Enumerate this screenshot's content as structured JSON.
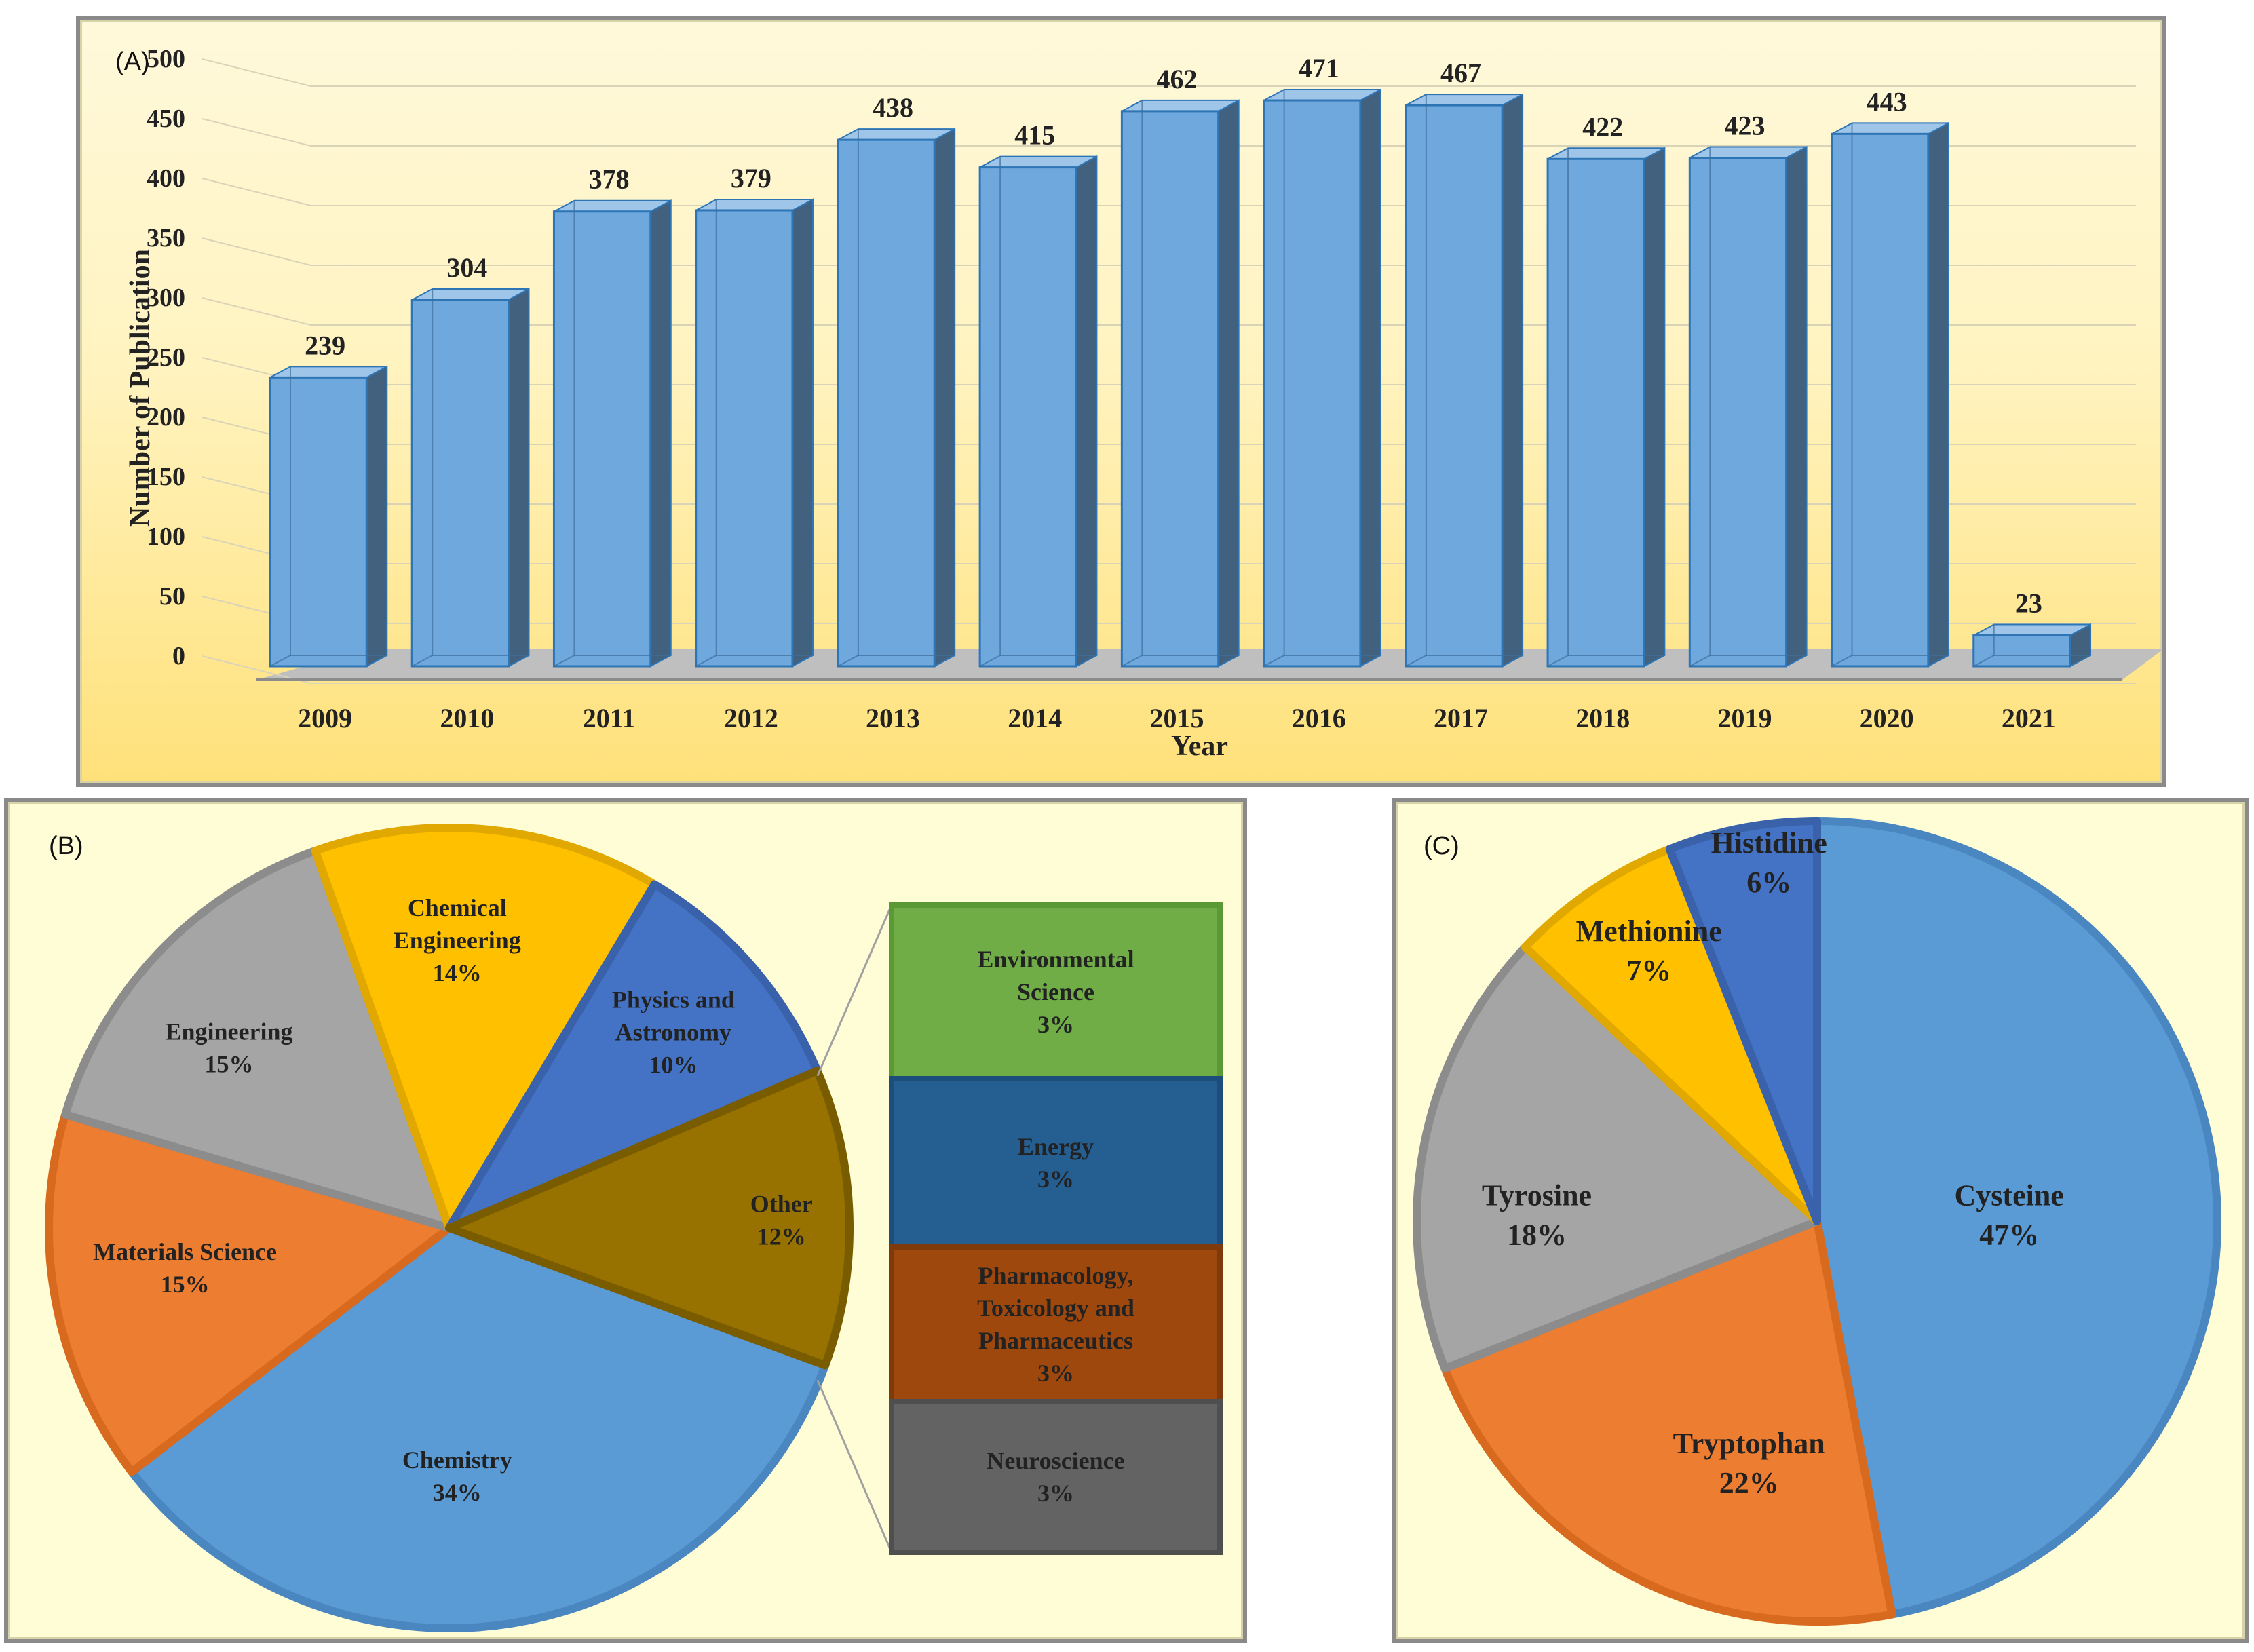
{
  "colors": {
    "bar_front": "#6fa8dc",
    "bar_side": "#41617f",
    "bar_edge": "#2e75b6",
    "pie_blue": "#5b9bd5",
    "pie_orange": "#ed7d31",
    "pie_gray": "#a5a5a5",
    "pie_yellow": "#ffc000",
    "pie_darkblue": "#4472c4",
    "pie_olive": "#977200",
    "green": "#70ad47",
    "teal_blue": "#255e91",
    "brown": "#9e480e",
    "dark_gray": "#636363"
  },
  "chart_data": [
    {
      "panel_label": "(A)",
      "type": "bar",
      "title": "",
      "xlabel": "Year",
      "ylabel": "Number of Publication",
      "ylim": [
        0,
        500
      ],
      "yticks": [
        0,
        50,
        100,
        150,
        200,
        250,
        300,
        350,
        400,
        450,
        500
      ],
      "categories": [
        "2009",
        "2010",
        "2011",
        "2012",
        "2013",
        "2014",
        "2015",
        "2016",
        "2017",
        "2018",
        "2019",
        "2020",
        "2021"
      ],
      "values": [
        239,
        304,
        378,
        379,
        438,
        415,
        462,
        471,
        467,
        422,
        423,
        443,
        23
      ],
      "grid": true
    },
    {
      "panel_label": "(B)",
      "type": "pie",
      "title": "",
      "slices": [
        {
          "label": "Chemistry",
          "value": 34,
          "pct": "34%"
        },
        {
          "label": "Materials Science",
          "value": 15,
          "pct": "15%"
        },
        {
          "label": "Engineering",
          "value": 15,
          "pct": "15%"
        },
        {
          "label": "Chemical Engineering",
          "value": 14,
          "pct": "14%"
        },
        {
          "label": "Physics and Astronomy",
          "value": 10,
          "pct": "10%"
        },
        {
          "label": "Other",
          "value": 12,
          "pct": "12%"
        }
      ],
      "breakdown_of": "Other",
      "breakdown": [
        {
          "label": "Environmental Science",
          "value": 3,
          "pct": "3%"
        },
        {
          "label": "Energy",
          "value": 3,
          "pct": "3%"
        },
        {
          "label": "Pharmacology, Toxicology and Pharmaceutics",
          "value": 3,
          "pct": "3%"
        },
        {
          "label": "Neuroscience",
          "value": 3,
          "pct": "3%"
        }
      ]
    },
    {
      "panel_label": "(C)",
      "type": "pie",
      "title": "",
      "slices": [
        {
          "label": "Cysteine",
          "value": 47,
          "pct": "47%"
        },
        {
          "label": "Tryptophan",
          "value": 22,
          "pct": "22%"
        },
        {
          "label": "Tyrosine",
          "value": 18,
          "pct": "18%"
        },
        {
          "label": "Methionine",
          "value": 7,
          "pct": "7%"
        },
        {
          "label": "Histidine",
          "value": 6,
          "pct": "6%"
        }
      ]
    }
  ]
}
